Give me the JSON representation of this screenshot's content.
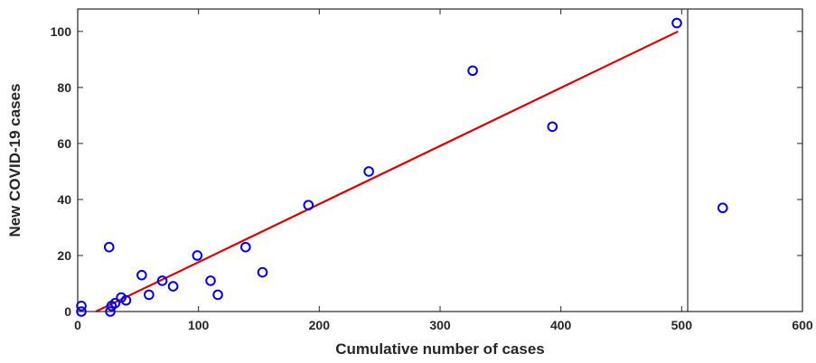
{
  "chart_data": {
    "type": "scatter",
    "xlabel": "Cumulative number of cases",
    "ylabel": "New COVID-19 cases",
    "xlim": [
      0,
      600
    ],
    "ylim": [
      0,
      108
    ],
    "xticks": [
      0,
      100,
      200,
      300,
      400,
      500,
      600
    ],
    "yticks": [
      0,
      20,
      40,
      60,
      80,
      100
    ],
    "grid": false,
    "series": [
      {
        "marker": "open-circle",
        "color": "#0000ee",
        "points": [
          {
            "x": 3,
            "y": 0
          },
          {
            "x": 3,
            "y": 2
          },
          {
            "x": 26,
            "y": 23
          },
          {
            "x": 27,
            "y": 0
          },
          {
            "x": 28,
            "y": 2
          },
          {
            "x": 31,
            "y": 3
          },
          {
            "x": 36,
            "y": 5
          },
          {
            "x": 40,
            "y": 4
          },
          {
            "x": 53,
            "y": 13
          },
          {
            "x": 59,
            "y": 6
          },
          {
            "x": 70,
            "y": 11
          },
          {
            "x": 79,
            "y": 9
          },
          {
            "x": 99,
            "y": 20
          },
          {
            "x": 110,
            "y": 11
          },
          {
            "x": 116,
            "y": 6
          },
          {
            "x": 139,
            "y": 23
          },
          {
            "x": 153,
            "y": 14
          },
          {
            "x": 191,
            "y": 38
          },
          {
            "x": 241,
            "y": 50
          },
          {
            "x": 327,
            "y": 86
          },
          {
            "x": 393,
            "y": 66
          },
          {
            "x": 496,
            "y": 103
          },
          {
            "x": 534,
            "y": 37
          }
        ]
      },
      {
        "type": "line",
        "color": "#e00000",
        "x": [
          15,
          497
        ],
        "y": [
          0,
          100
        ]
      }
    ],
    "vline": {
      "x": 505,
      "color": "#000000"
    }
  }
}
